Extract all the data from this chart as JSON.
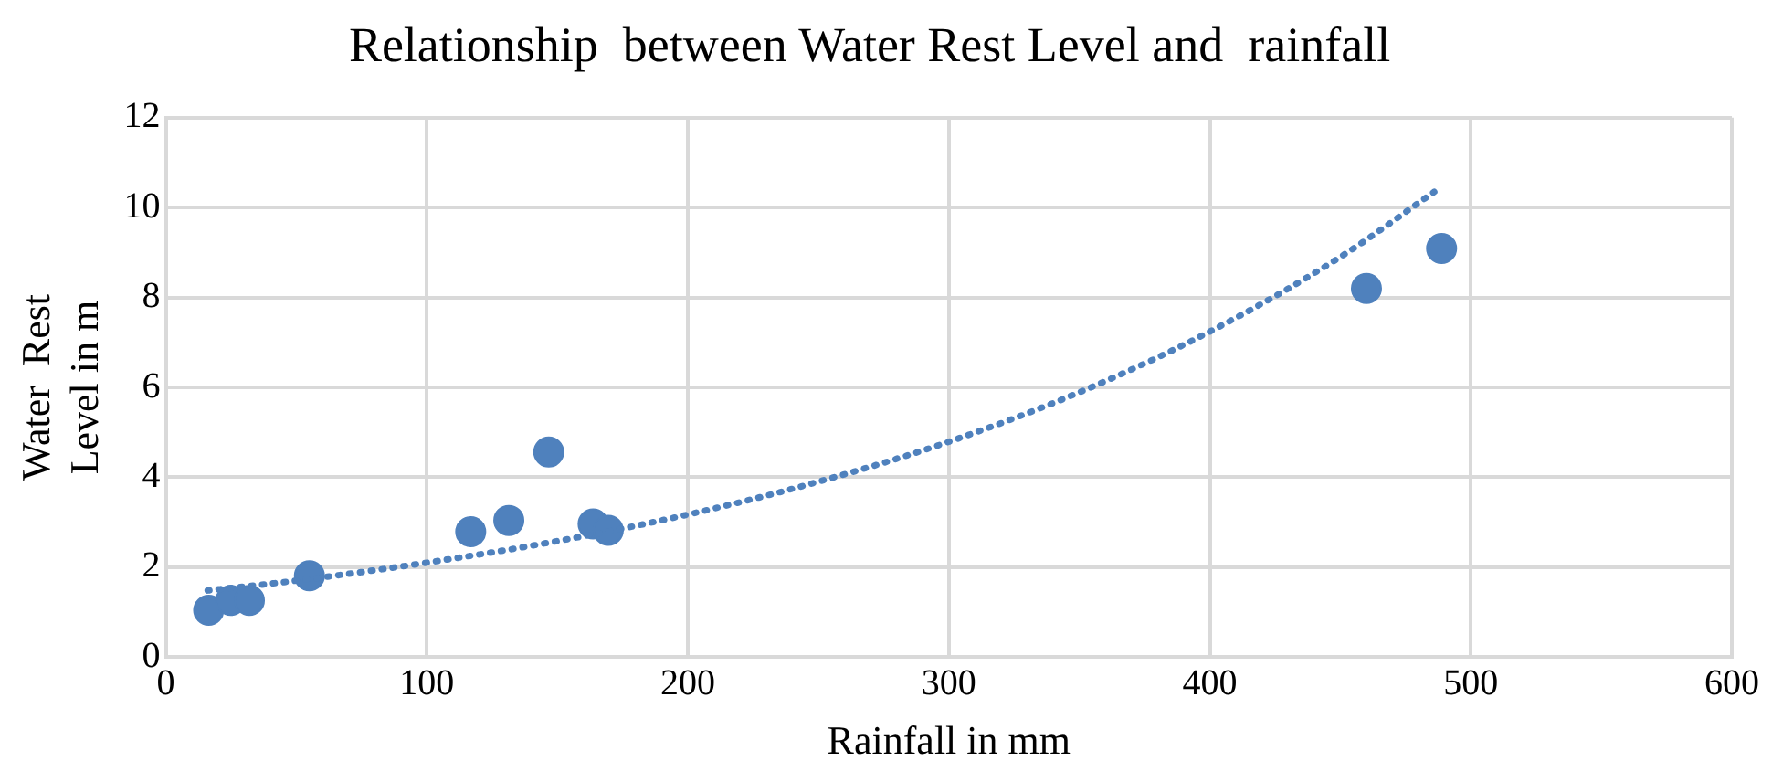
{
  "chart_data": {
    "type": "scatter",
    "title": "Relationship  between Water Rest Level and  rainfall",
    "xlabel": "Rainfall in mm",
    "ylabel": "Water  Rest Level in m",
    "xlim": [
      0,
      600
    ],
    "xticks": [
      0,
      100,
      200,
      300,
      400,
      500,
      600
    ],
    "ylim": [
      0,
      12
    ],
    "yticks": [
      0,
      2,
      4,
      6,
      8,
      10,
      12
    ],
    "grid": true,
    "legend": false,
    "marker": "circle",
    "series": [
      {
        "type": "scatter",
        "color": "#4f81bd",
        "x": [
          16.4,
          24.9,
          32,
          55,
          116.8,
          131.4,
          146.7,
          163.7,
          169.5,
          460,
          488.8
        ],
        "values": [
          1.04,
          1.26,
          1.26,
          1.81,
          2.79,
          3.04,
          4.56,
          2.96,
          2.82,
          8.2,
          9.09
        ]
      },
      {
        "type": "line",
        "color": "#4f81bd",
        "line_style": "dotted",
        "marker": "none",
        "x": [
          16,
          50,
          100,
          150,
          200,
          250,
          300,
          350,
          400,
          450,
          486
        ],
        "values": [
          1.48,
          1.7,
          2.1,
          2.58,
          3.17,
          3.9,
          4.79,
          5.89,
          7.24,
          8.9,
          10.35
        ]
      }
    ]
  }
}
